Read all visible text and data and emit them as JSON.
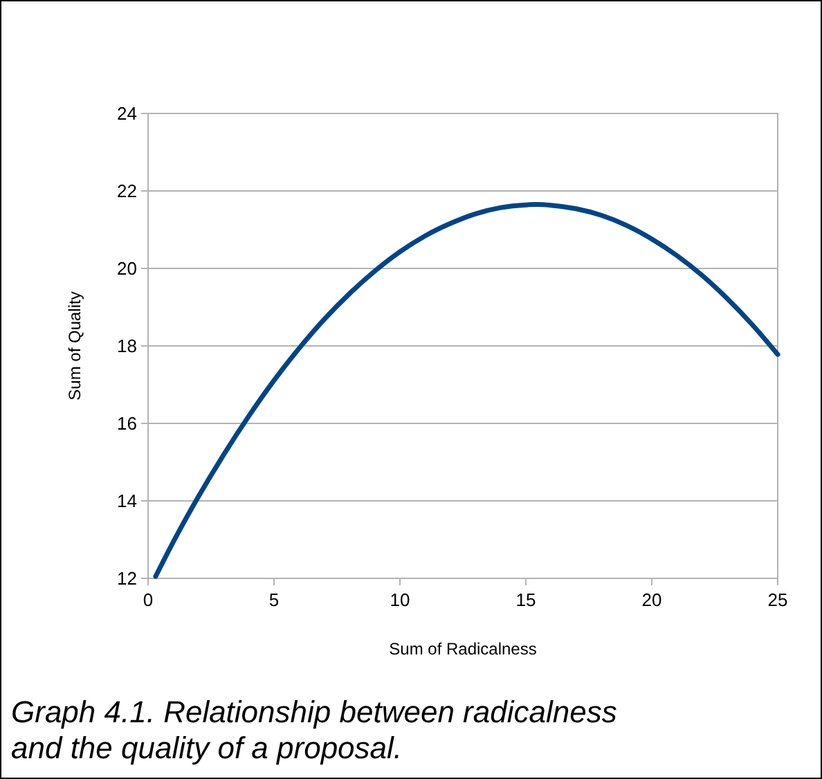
{
  "chart_data": {
    "type": "line",
    "xlabel": "Sum of Radicalness",
    "ylabel": "Sum of Quality",
    "x": [
      0.3,
      1,
      2,
      3,
      4,
      5,
      6,
      7,
      8,
      9,
      10,
      11,
      12,
      13,
      14,
      15,
      15.4,
      16,
      17,
      18,
      19,
      20,
      21,
      22,
      23,
      24,
      25
    ],
    "series": [
      {
        "color": "#004586",
        "values": [
          12.05,
          12.94,
          14.11,
          15.19,
          16.19,
          17.11,
          17.94,
          18.69,
          19.35,
          19.93,
          20.43,
          20.84,
          21.16,
          21.41,
          21.57,
          21.64,
          21.65,
          21.63,
          21.54,
          21.37,
          21.11,
          20.76,
          20.33,
          19.82,
          19.22,
          18.54,
          17.78
        ]
      }
    ],
    "xlim": [
      0,
      25
    ],
    "xticks": [
      0,
      5,
      10,
      15,
      20,
      25
    ],
    "ylim": [
      12,
      24
    ],
    "yticks": [
      12,
      14,
      16,
      18,
      20,
      22,
      24
    ],
    "grid": "y",
    "marker": "none",
    "line_style": "solid",
    "annotations": [
      "Graph 4.1. Relationship between radicalness and the quality of a proposal."
    ]
  }
}
